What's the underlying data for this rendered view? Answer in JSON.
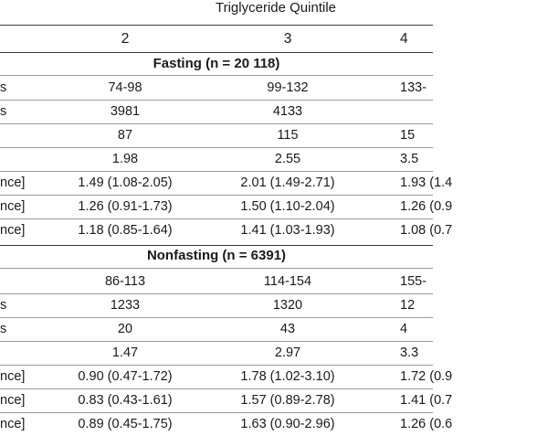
{
  "title": "Triglyceride Quintile",
  "header": {
    "col1": "2",
    "col2": "3",
    "col3": "4"
  },
  "fasting": {
    "label": "Fasting (n = 20 118)",
    "rows": [
      {
        "stub": "s",
        "c1": "74-98",
        "c2": "99-132",
        "c3": "133-"
      },
      {
        "stub": "s",
        "c1": "3981",
        "c2": "4133",
        "c3": ""
      },
      {
        "stub": "",
        "c1": "87",
        "c2": "115",
        "c3": "15"
      },
      {
        "stub": "",
        "c1": "1.98",
        "c2": "2.55",
        "c3": "3.5"
      },
      {
        "stub": "nce]",
        "c1": "1.49 (1.08-2.05)",
        "c2": "2.01 (1.49-2.71)",
        "c3": "1.93 (1.4"
      },
      {
        "stub": "nce]",
        "c1": "1.26 (0.91-1.73)",
        "c2": "1.50 (1.10-2.04)",
        "c3": "1.26 (0.9"
      },
      {
        "stub": "nce]",
        "c1": "1.18 (0.85-1.64)",
        "c2": "1.41 (1.03-1.93)",
        "c3": "1.08 (0.7"
      }
    ]
  },
  "nonfasting": {
    "label": "Nonfasting (n = 6391)",
    "rows": [
      {
        "stub": "",
        "c1": "86-113",
        "c2": "114-154",
        "c3": "155-"
      },
      {
        "stub": "s",
        "c1": "1233",
        "c2": "1320",
        "c3": "12"
      },
      {
        "stub": "s",
        "c1": "20",
        "c2": "43",
        "c3": "4"
      },
      {
        "stub": "",
        "c1": "1.47",
        "c2": "2.97",
        "c3": "3.3"
      },
      {
        "stub": "nce]",
        "c1": "0.90 (0.47-1.72)",
        "c2": "1.78 (1.02-3.10)",
        "c3": "1.72 (0.9"
      },
      {
        "stub": "nce]",
        "c1": "0.83 (0.43-1.61)",
        "c2": "1.57 (0.89-2.78)",
        "c3": "1.41 (0.7"
      },
      {
        "stub": "nce]",
        "c1": "0.89 (0.45-1.75)",
        "c2": "1.63 (0.90-2.96)",
        "c3": "1.26 (0.6"
      }
    ]
  }
}
